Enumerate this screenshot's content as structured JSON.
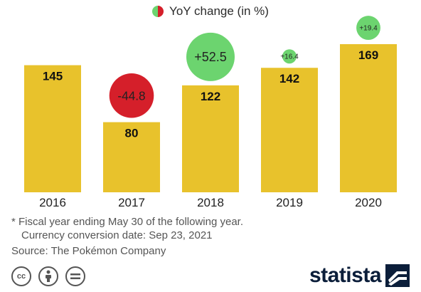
{
  "legend": {
    "label": "YoY change (in %)"
  },
  "chart_data": {
    "type": "bar",
    "categories": [
      "2016",
      "2017",
      "2018",
      "2019",
      "2020"
    ],
    "values": [
      145,
      80,
      122,
      142,
      169
    ],
    "yoy_change": [
      null,
      "-44.8",
      "+52.5",
      "+16.4",
      "+19.4"
    ],
    "yoy_change_values": [
      null,
      -44.8,
      52.5,
      16.4,
      19.4
    ],
    "ylim": [
      0,
      180
    ],
    "grid": false,
    "legend_position": "top-center",
    "colors": {
      "bar": "#E8C22C",
      "positive": "#6CD46F",
      "negative": "#D51F2A"
    }
  },
  "footnotes": [
    "* Fiscal year ending May 30 of the following year.",
    "Currency conversion date: Sep 23, 2021"
  ],
  "source": "Source: The Pokémon Company",
  "branding": {
    "name": "statista"
  },
  "license_icons": [
    "cc-icon",
    "by-icon",
    "nd-icon"
  ]
}
